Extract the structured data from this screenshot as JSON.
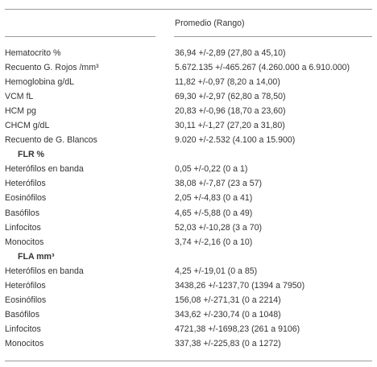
{
  "table": {
    "header": "Promedio (Rango)",
    "rows": [
      {
        "label": "Hematocrito %",
        "value": "36,94 +/-2,89 (27,80 a 45,10)"
      },
      {
        "label": "Recuento G. Rojos /mm³",
        "value": "5.672.135  +/-465.267 (4.260.000 a 6.910.000)"
      },
      {
        "label": "Hemoglobina g/dL",
        "value": "11,82 +/-0,97 (8,20 a 14,00)"
      },
      {
        "label": "VCM fL",
        "value": "69,30 +/-2,97 (62,80 a 78,50)"
      },
      {
        "label": "HCM pg",
        "value": "20,83 +/-0,96 (18,70 a 23,60)"
      },
      {
        "label": "CHCM g/dL",
        "value": "30,11 +/-1,27 (27,20 a 31,80)"
      },
      {
        "label": "Recuento de G. Blancos",
        "value": "9.020 +/-2.532 (4.100  a 15.900)"
      },
      {
        "label": "FLR %",
        "value": ""
      },
      {
        "label": "Heterófilos en banda",
        "value": "0,05 +/-0,22 (0 a 1)"
      },
      {
        "label": "Heterófilos",
        "value": "38,08 +/-7,87 (23 a 57)"
      },
      {
        "label": "Eosinófilos",
        "value": "2,05 +/-4,83 (0 a 41)"
      },
      {
        "label": "Basófilos",
        "value": "4,65 +/-5,88 (0 a 49)"
      },
      {
        "label": "Linfocitos",
        "value": "52,03 +/-10,28 (3 a 70)"
      },
      {
        "label": "Monocitos",
        "value": "3,74 +/-2,16 (0 a 10)"
      },
      {
        "label": "FLA mm³",
        "value": ""
      },
      {
        "label": "Heterófilos en banda",
        "value": "4,25 +/-19,01 (0 a 85)"
      },
      {
        "label": "Heterófilos",
        "value": "3438,26 +/-1237,70 (1394 a 7950)"
      },
      {
        "label": "Eosinófilos",
        "value": "156,08 +/-271,31 (0 a 2214)"
      },
      {
        "label": "Basófilos",
        "value": "343,62 +/-230,74 (0 a 1048)"
      },
      {
        "label": "Linfocitos",
        "value": "4721,38 +/-1698,23 (261 a 9106)"
      },
      {
        "label": "Monocitos",
        "value": "337,38 +/-225,83 (0 a 1272)"
      }
    ]
  }
}
